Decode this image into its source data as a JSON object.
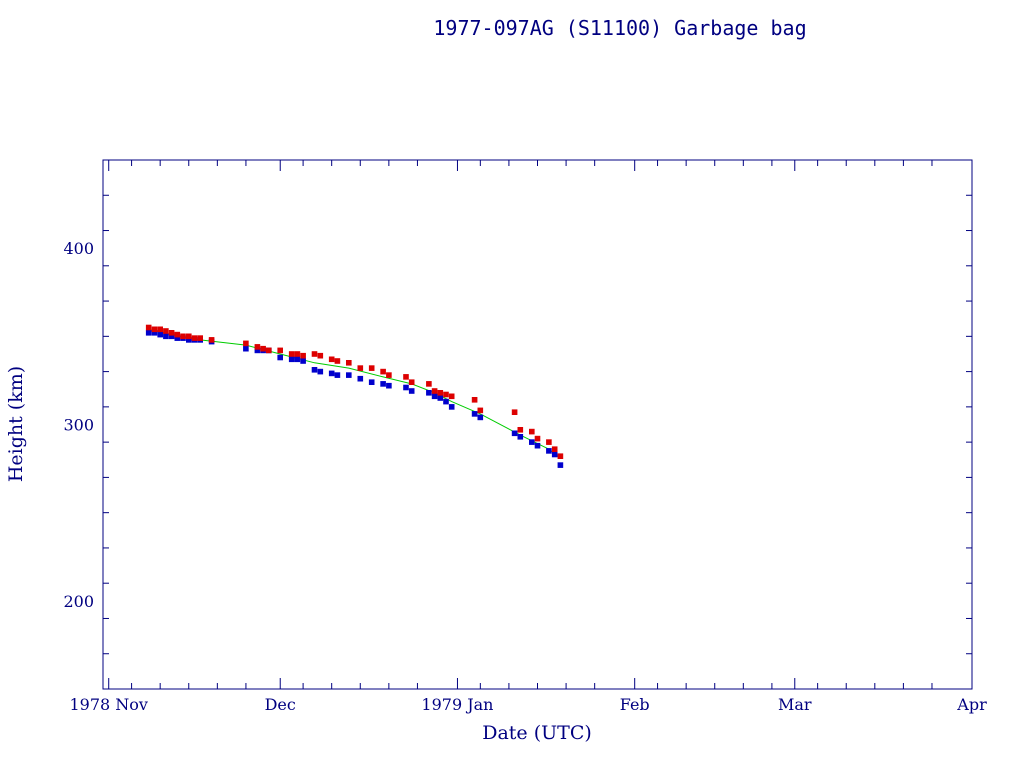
{
  "chart_data": {
    "type": "scatter",
    "title": "1977-097AG (S11100) Garbage bag",
    "xlabel": "Date (UTC)",
    "ylabel": "Height (km)",
    "xlim": [
      "1978-10-31",
      "1979-04-01"
    ],
    "ylim": [
      150,
      450
    ],
    "x_tick_labels": [
      {
        "date": "1978-11-01",
        "label": "1978 Nov"
      },
      {
        "date": "1978-12-01",
        "label": "Dec"
      },
      {
        "date": "1979-01-01",
        "label": "1979 Jan"
      },
      {
        "date": "1979-02-01",
        "label": "Feb"
      },
      {
        "date": "1979-03-01",
        "label": "Mar"
      },
      {
        "date": "1979-04-01",
        "label": "Apr"
      }
    ],
    "y_ticks": [
      200,
      300,
      400
    ],
    "colors": {
      "axes": "#000080",
      "apogee": "#dd0000",
      "perigee": "#0000cc",
      "mean_line": "#00cc00"
    },
    "series": [
      {
        "kind": "apogee",
        "x": [
          "1978-11-08",
          "1978-11-09",
          "1978-11-10",
          "1978-11-11",
          "1978-11-12",
          "1978-11-13",
          "1978-11-14",
          "1978-11-15",
          "1978-11-16",
          "1978-11-17",
          "1978-11-19",
          "1978-11-25",
          "1978-11-27",
          "1978-11-28",
          "1978-11-29",
          "1978-12-01",
          "1978-12-03",
          "1978-12-04",
          "1978-12-05",
          "1978-12-07",
          "1978-12-08",
          "1978-12-10",
          "1978-12-11",
          "1978-12-13",
          "1978-12-15",
          "1978-12-17",
          "1978-12-19",
          "1978-12-20",
          "1978-12-23",
          "1978-12-24",
          "1978-12-27",
          "1978-12-28",
          "1978-12-29",
          "1978-12-30",
          "1978-12-31",
          "1979-01-04",
          "1979-01-05",
          "1979-01-11",
          "1979-01-12",
          "1979-01-14",
          "1979-01-15",
          "1979-01-17",
          "1979-01-18",
          "1979-01-19"
        ],
        "y": [
          355,
          354,
          354,
          353,
          352,
          351,
          350,
          350,
          349,
          349,
          348,
          346,
          344,
          343,
          342,
          342,
          340,
          340,
          339,
          340,
          339,
          337,
          336,
          335,
          332,
          332,
          330,
          328,
          327,
          324,
          323,
          319,
          318,
          317,
          316,
          314,
          308,
          307,
          297,
          296,
          292,
          290,
          286,
          282
        ]
      },
      {
        "kind": "perigee",
        "x": [
          "1978-11-08",
          "1978-11-09",
          "1978-11-10",
          "1978-11-11",
          "1978-11-12",
          "1978-11-13",
          "1978-11-14",
          "1978-11-15",
          "1978-11-16",
          "1978-11-17",
          "1978-11-19",
          "1978-11-25",
          "1978-11-27",
          "1978-11-28",
          "1978-11-29",
          "1978-12-01",
          "1978-12-03",
          "1978-12-04",
          "1978-12-05",
          "1978-12-07",
          "1978-12-08",
          "1978-12-10",
          "1978-12-11",
          "1978-12-13",
          "1978-12-15",
          "1978-12-17",
          "1978-12-19",
          "1978-12-20",
          "1978-12-23",
          "1978-12-24",
          "1978-12-27",
          "1978-12-28",
          "1978-12-29",
          "1978-12-30",
          "1978-12-31",
          "1979-01-04",
          "1979-01-05",
          "1979-01-11",
          "1979-01-12",
          "1979-01-14",
          "1979-01-15",
          "1979-01-17",
          "1979-01-18",
          "1979-01-19"
        ],
        "y": [
          352,
          352,
          351,
          350,
          350,
          349,
          349,
          348,
          348,
          348,
          347,
          343,
          342,
          342,
          342,
          338,
          337,
          337,
          336,
          331,
          330,
          329,
          328,
          328,
          326,
          324,
          323,
          322,
          321,
          319,
          318,
          316,
          315,
          313,
          310,
          306,
          304,
          295,
          293,
          290,
          288,
          285,
          283,
          277
        ]
      },
      {
        "kind": "mean",
        "x": [
          "1978-11-08",
          "1978-11-12",
          "1978-11-17",
          "1978-11-25",
          "1978-12-01",
          "1978-12-07",
          "1978-12-13",
          "1978-12-19",
          "1978-12-24",
          "1978-12-28",
          "1978-12-31",
          "1979-01-05",
          "1979-01-12",
          "1979-01-17",
          "1979-01-19"
        ],
        "y": [
          354,
          351,
          348,
          345,
          340,
          335,
          332,
          327,
          323,
          318,
          313,
          306,
          294,
          286,
          281
        ]
      }
    ]
  }
}
